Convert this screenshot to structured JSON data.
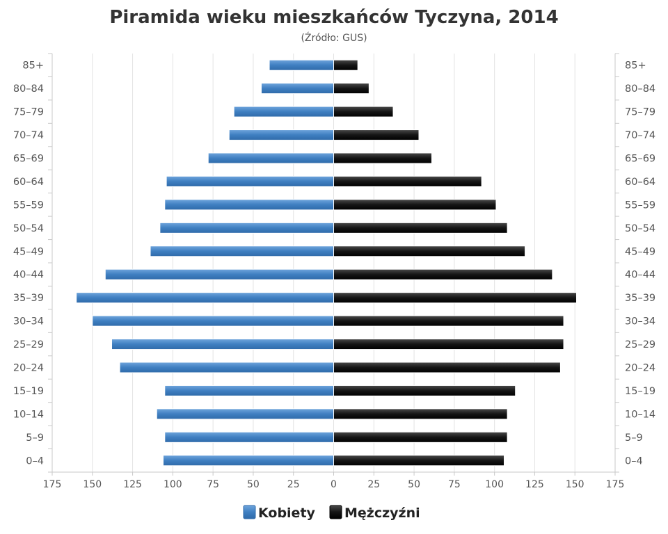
{
  "chart_data": {
    "type": "bar",
    "orientation": "horizontal-pyramid",
    "title": "Piramida wieku mieszkańców Tyczyna, 2014",
    "subtitle": "(Źródło: GUS)",
    "categories": [
      "0–4",
      "5–9",
      "10–14",
      "15–19",
      "20–24",
      "25–29",
      "30–34",
      "35–39",
      "40–44",
      "45–49",
      "50–54",
      "55–59",
      "60–64",
      "65–69",
      "70–74",
      "75–79",
      "80–84",
      "85+"
    ],
    "series": [
      {
        "name": "Kobiety",
        "color": "#4a86c5",
        "side": "left",
        "values": [
          106,
          105,
          110,
          105,
          133,
          138,
          150,
          160,
          142,
          114,
          108,
          105,
          104,
          78,
          65,
          62,
          45,
          40
        ]
      },
      {
        "name": "Mężczyźni",
        "color": "#1a1a1a",
        "side": "right",
        "values": [
          106,
          108,
          108,
          113,
          141,
          143,
          143,
          151,
          136,
          119,
          108,
          101,
          92,
          61,
          53,
          37,
          22,
          15
        ]
      }
    ],
    "xlim": [
      -175,
      175
    ],
    "ticks": [
      "175",
      "150",
      "125",
      "100",
      "75",
      "50",
      "25",
      "0",
      "25",
      "50",
      "75",
      "100",
      "125",
      "150",
      "175"
    ],
    "grid": true,
    "legend": "bottom-center"
  }
}
